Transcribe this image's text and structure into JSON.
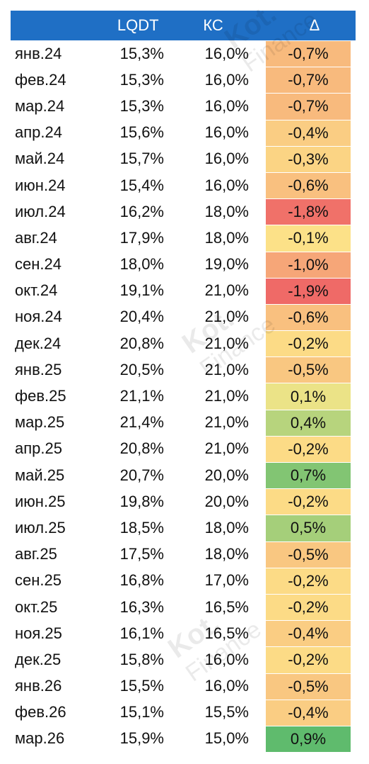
{
  "header": {
    "month": "",
    "lqdt": "LQDT",
    "ks": "КС",
    "delta": "Δ"
  },
  "colors": {
    "header_bg": "#1f6fc5",
    "neg_strong": "#ef6a67",
    "neutral": "#fde88a",
    "pos_strong": "#5fbb6d"
  },
  "rows": [
    {
      "month": "янв.24",
      "lqdt": "15,3%",
      "ks": "16,0%",
      "delta": "-0,7%",
      "value": -0.7
    },
    {
      "month": "фев.24",
      "lqdt": "15,3%",
      "ks": "16,0%",
      "delta": "-0,7%",
      "value": -0.7
    },
    {
      "month": "мар.24",
      "lqdt": "15,3%",
      "ks": "16,0%",
      "delta": "-0,7%",
      "value": -0.7
    },
    {
      "month": "апр.24",
      "lqdt": "15,6%",
      "ks": "16,0%",
      "delta": "-0,4%",
      "value": -0.4
    },
    {
      "month": "май.24",
      "lqdt": "15,7%",
      "ks": "16,0%",
      "delta": "-0,3%",
      "value": -0.3
    },
    {
      "month": "июн.24",
      "lqdt": "15,4%",
      "ks": "16,0%",
      "delta": "-0,6%",
      "value": -0.6
    },
    {
      "month": "июл.24",
      "lqdt": "16,2%",
      "ks": "18,0%",
      "delta": "-1,8%",
      "value": -1.8
    },
    {
      "month": "авг.24",
      "lqdt": "17,9%",
      "ks": "18,0%",
      "delta": "-0,1%",
      "value": -0.1
    },
    {
      "month": "сен.24",
      "lqdt": "18,0%",
      "ks": "19,0%",
      "delta": "-1,0%",
      "value": -1.0
    },
    {
      "month": "окт.24",
      "lqdt": "19,1%",
      "ks": "21,0%",
      "delta": "-1,9%",
      "value": -1.9
    },
    {
      "month": "ноя.24",
      "lqdt": "20,4%",
      "ks": "21,0%",
      "delta": "-0,6%",
      "value": -0.6
    },
    {
      "month": "дек.24",
      "lqdt": "20,8%",
      "ks": "21,0%",
      "delta": "-0,2%",
      "value": -0.2
    },
    {
      "month": "янв.25",
      "lqdt": "20,5%",
      "ks": "21,0%",
      "delta": "-0,5%",
      "value": -0.5
    },
    {
      "month": "фев.25",
      "lqdt": "21,1%",
      "ks": "21,0%",
      "delta": "0,1%",
      "value": 0.1
    },
    {
      "month": "мар.25",
      "lqdt": "21,4%",
      "ks": "21,0%",
      "delta": "0,4%",
      "value": 0.4
    },
    {
      "month": "апр.25",
      "lqdt": "20,8%",
      "ks": "21,0%",
      "delta": "-0,2%",
      "value": -0.2
    },
    {
      "month": "май.25",
      "lqdt": "20,7%",
      "ks": "20,0%",
      "delta": "0,7%",
      "value": 0.7
    },
    {
      "month": "июн.25",
      "lqdt": "19,8%",
      "ks": "20,0%",
      "delta": "-0,2%",
      "value": -0.2
    },
    {
      "month": "июл.25",
      "lqdt": "18,5%",
      "ks": "18,0%",
      "delta": "0,5%",
      "value": 0.5
    },
    {
      "month": "авг.25",
      "lqdt": "17,5%",
      "ks": "18,0%",
      "delta": "-0,5%",
      "value": -0.5
    },
    {
      "month": "сен.25",
      "lqdt": "16,8%",
      "ks": "17,0%",
      "delta": "-0,2%",
      "value": -0.2
    },
    {
      "month": "окт.25",
      "lqdt": "16,3%",
      "ks": "16,5%",
      "delta": "-0,2%",
      "value": -0.2
    },
    {
      "month": "ноя.25",
      "lqdt": "16,1%",
      "ks": "16,5%",
      "delta": "-0,4%",
      "value": -0.4
    },
    {
      "month": "дек.25",
      "lqdt": "15,8%",
      "ks": "16,0%",
      "delta": "-0,2%",
      "value": -0.2
    },
    {
      "month": "янв.26",
      "lqdt": "15,5%",
      "ks": "16,0%",
      "delta": "-0,5%",
      "value": -0.5
    },
    {
      "month": "фев.26",
      "lqdt": "15,1%",
      "ks": "15,5%",
      "delta": "-0,4%",
      "value": -0.4
    },
    {
      "month": "мар.26",
      "lqdt": "15,9%",
      "ks": "15,0%",
      "delta": "0,9%",
      "value": 0.9
    }
  ],
  "watermark": {
    "line1": "Kot.",
    "line2": "Finance"
  }
}
